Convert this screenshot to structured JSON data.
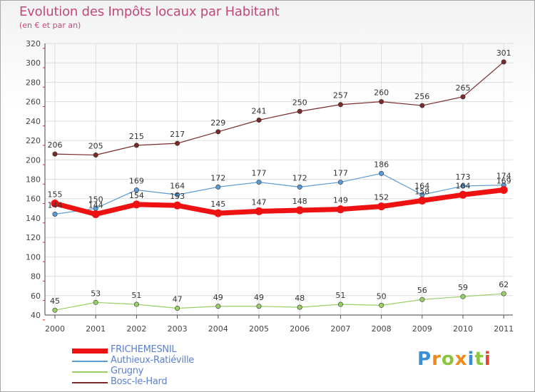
{
  "header": {
    "title": "Evolution des Impôts locaux par Habitant",
    "subtitle": "(en € et par an)"
  },
  "colors": {
    "title": "#c0497a",
    "legend_text": "#5b7fd1"
  },
  "chart_data": {
    "type": "line",
    "title": "Evolution des Impôts locaux par Habitant",
    "subtitle": "(en € et par an)",
    "xlabel": "",
    "ylabel": "",
    "ylim": [
      40,
      320
    ],
    "yticks": [
      40,
      60,
      80,
      100,
      120,
      140,
      160,
      180,
      200,
      220,
      240,
      260,
      280,
      300,
      320
    ],
    "grid": true,
    "legend_position": "bottom-left",
    "categories": [
      "2000",
      "2001",
      "2002",
      "2003",
      "2004",
      "2005",
      "2006",
      "2007",
      "2008",
      "2009",
      "2010",
      "2011"
    ],
    "series": [
      {
        "name": "Bosc-le-Hard",
        "color": "#7b2a2a",
        "values": [
          206,
          205,
          215,
          217,
          229,
          241,
          250,
          257,
          260,
          256,
          265,
          301
        ]
      },
      {
        "name": "Authieux-Ratiéville",
        "color": "#5b9bd5",
        "values": [
          144,
          150,
          169,
          164,
          172,
          177,
          172,
          177,
          186,
          164,
          173,
          174
        ]
      },
      {
        "name": "Grugny",
        "color": "#99d066",
        "values": [
          45,
          53,
          51,
          47,
          49,
          49,
          48,
          51,
          50,
          56,
          59,
          62
        ]
      },
      {
        "name": "FRICHEMESNIL",
        "color": "#ee1111",
        "values": [
          155,
          144,
          154,
          153,
          145,
          147,
          148,
          149,
          152,
          158,
          164,
          169
        ]
      }
    ]
  },
  "legend": {
    "items": [
      {
        "name": "FRICHEMESNIL",
        "color": "#ee1111"
      },
      {
        "name": "Authieux-Ratiéville",
        "color": "#5b9bd5"
      },
      {
        "name": "Grugny",
        "color": "#99d066"
      },
      {
        "name": "Bosc-le-Hard",
        "color": "#7b2a2a"
      }
    ]
  },
  "brand": {
    "logo_text": "Proxiti",
    "letters": [
      {
        "ch": "P",
        "color": "#3a8fd6"
      },
      {
        "ch": "r",
        "color": "#f08a1c"
      },
      {
        "ch": "o",
        "color": "#8cc63f"
      },
      {
        "ch": "x",
        "color": "#f08a1c"
      },
      {
        "ch": "i",
        "color": "#3a8fd6"
      },
      {
        "ch": "t",
        "color": "#8cc63f"
      },
      {
        "ch": "i",
        "color": "#e0453a"
      }
    ]
  }
}
